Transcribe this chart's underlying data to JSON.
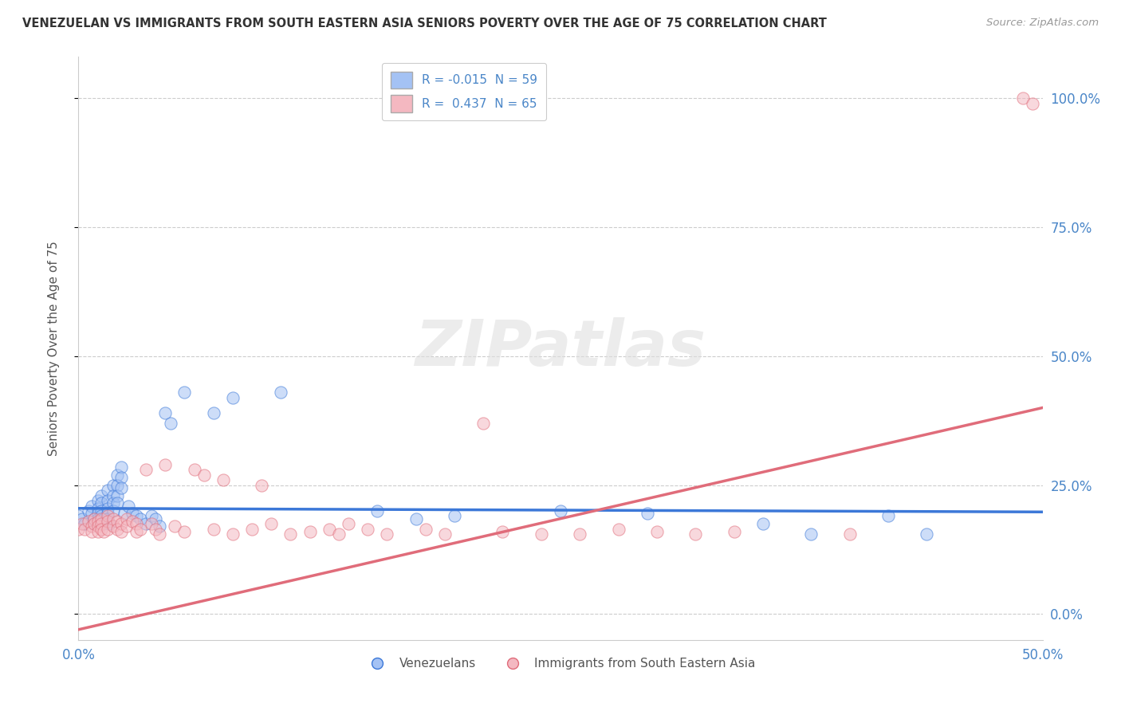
{
  "title": "VENEZUELAN VS IMMIGRANTS FROM SOUTH EASTERN ASIA SENIORS POVERTY OVER THE AGE OF 75 CORRELATION CHART",
  "source": "Source: ZipAtlas.com",
  "ylabel": "Seniors Poverty Over the Age of 75",
  "xlim": [
    0.0,
    0.5
  ],
  "ylim": [
    -0.05,
    1.08
  ],
  "yticks": [
    0.0,
    0.25,
    0.5,
    0.75,
    1.0
  ],
  "ytick_labels": [
    "0.0%",
    "25.0%",
    "50.0%",
    "75.0%",
    "100.0%"
  ],
  "xticks": [
    0.0,
    0.5
  ],
  "xtick_labels": [
    "0.0%",
    "50.0%"
  ],
  "background_color": "#ffffff",
  "watermark_text": "ZIPatlas",
  "blue_color": "#a4c2f4",
  "pink_color": "#f4b8c1",
  "blue_line_color": "#3c78d8",
  "pink_line_color": "#e06c7a",
  "R_blue": -0.015,
  "N_blue": 59,
  "R_pink": 0.437,
  "N_pink": 65,
  "legend_label_blue": "Venezuelans",
  "legend_label_pink": "Immigrants from South Eastern Asia",
  "blue_line_y0": 0.205,
  "blue_line_y1": 0.198,
  "pink_line_y0": -0.03,
  "pink_line_y1": 0.4,
  "blue_points": [
    [
      0.0,
      0.19
    ],
    [
      0.002,
      0.185
    ],
    [
      0.003,
      0.175
    ],
    [
      0.005,
      0.2
    ],
    [
      0.007,
      0.21
    ],
    [
      0.007,
      0.195
    ],
    [
      0.008,
      0.185
    ],
    [
      0.008,
      0.175
    ],
    [
      0.01,
      0.22
    ],
    [
      0.01,
      0.205
    ],
    [
      0.01,
      0.195
    ],
    [
      0.01,
      0.185
    ],
    [
      0.012,
      0.23
    ],
    [
      0.012,
      0.215
    ],
    [
      0.012,
      0.2
    ],
    [
      0.012,
      0.19
    ],
    [
      0.013,
      0.185
    ],
    [
      0.013,
      0.175
    ],
    [
      0.015,
      0.24
    ],
    [
      0.015,
      0.22
    ],
    [
      0.015,
      0.205
    ],
    [
      0.015,
      0.195
    ],
    [
      0.015,
      0.185
    ],
    [
      0.016,
      0.175
    ],
    [
      0.018,
      0.25
    ],
    [
      0.018,
      0.23
    ],
    [
      0.018,
      0.215
    ],
    [
      0.018,
      0.2
    ],
    [
      0.02,
      0.27
    ],
    [
      0.02,
      0.25
    ],
    [
      0.02,
      0.23
    ],
    [
      0.02,
      0.215
    ],
    [
      0.022,
      0.285
    ],
    [
      0.022,
      0.265
    ],
    [
      0.022,
      0.245
    ],
    [
      0.024,
      0.195
    ],
    [
      0.026,
      0.21
    ],
    [
      0.028,
      0.195
    ],
    [
      0.03,
      0.19
    ],
    [
      0.032,
      0.185
    ],
    [
      0.035,
      0.175
    ],
    [
      0.038,
      0.19
    ],
    [
      0.04,
      0.185
    ],
    [
      0.042,
      0.17
    ],
    [
      0.045,
      0.39
    ],
    [
      0.048,
      0.37
    ],
    [
      0.055,
      0.43
    ],
    [
      0.07,
      0.39
    ],
    [
      0.08,
      0.42
    ],
    [
      0.105,
      0.43
    ],
    [
      0.155,
      0.2
    ],
    [
      0.175,
      0.185
    ],
    [
      0.195,
      0.19
    ],
    [
      0.25,
      0.2
    ],
    [
      0.295,
      0.195
    ],
    [
      0.355,
      0.175
    ],
    [
      0.38,
      0.155
    ],
    [
      0.42,
      0.19
    ],
    [
      0.44,
      0.155
    ]
  ],
  "pink_points": [
    [
      0.0,
      0.165
    ],
    [
      0.002,
      0.175
    ],
    [
      0.003,
      0.165
    ],
    [
      0.005,
      0.18
    ],
    [
      0.007,
      0.17
    ],
    [
      0.007,
      0.16
    ],
    [
      0.008,
      0.185
    ],
    [
      0.008,
      0.175
    ],
    [
      0.01,
      0.18
    ],
    [
      0.01,
      0.17
    ],
    [
      0.01,
      0.16
    ],
    [
      0.012,
      0.185
    ],
    [
      0.012,
      0.175
    ],
    [
      0.012,
      0.165
    ],
    [
      0.013,
      0.16
    ],
    [
      0.015,
      0.19
    ],
    [
      0.015,
      0.18
    ],
    [
      0.015,
      0.165
    ],
    [
      0.018,
      0.185
    ],
    [
      0.018,
      0.17
    ],
    [
      0.02,
      0.18
    ],
    [
      0.02,
      0.165
    ],
    [
      0.022,
      0.175
    ],
    [
      0.022,
      0.16
    ],
    [
      0.025,
      0.185
    ],
    [
      0.025,
      0.17
    ],
    [
      0.028,
      0.18
    ],
    [
      0.03,
      0.175
    ],
    [
      0.03,
      0.16
    ],
    [
      0.032,
      0.165
    ],
    [
      0.035,
      0.28
    ],
    [
      0.038,
      0.175
    ],
    [
      0.04,
      0.165
    ],
    [
      0.042,
      0.155
    ],
    [
      0.045,
      0.29
    ],
    [
      0.05,
      0.17
    ],
    [
      0.055,
      0.16
    ],
    [
      0.06,
      0.28
    ],
    [
      0.065,
      0.27
    ],
    [
      0.07,
      0.165
    ],
    [
      0.075,
      0.26
    ],
    [
      0.08,
      0.155
    ],
    [
      0.09,
      0.165
    ],
    [
      0.095,
      0.25
    ],
    [
      0.1,
      0.175
    ],
    [
      0.11,
      0.155
    ],
    [
      0.12,
      0.16
    ],
    [
      0.13,
      0.165
    ],
    [
      0.135,
      0.155
    ],
    [
      0.14,
      0.175
    ],
    [
      0.15,
      0.165
    ],
    [
      0.16,
      0.155
    ],
    [
      0.18,
      0.165
    ],
    [
      0.19,
      0.155
    ],
    [
      0.21,
      0.37
    ],
    [
      0.22,
      0.16
    ],
    [
      0.24,
      0.155
    ],
    [
      0.26,
      0.155
    ],
    [
      0.28,
      0.165
    ],
    [
      0.3,
      0.16
    ],
    [
      0.32,
      0.155
    ],
    [
      0.34,
      0.16
    ],
    [
      0.4,
      0.155
    ],
    [
      0.49,
      1.0
    ],
    [
      0.495,
      0.99
    ]
  ]
}
